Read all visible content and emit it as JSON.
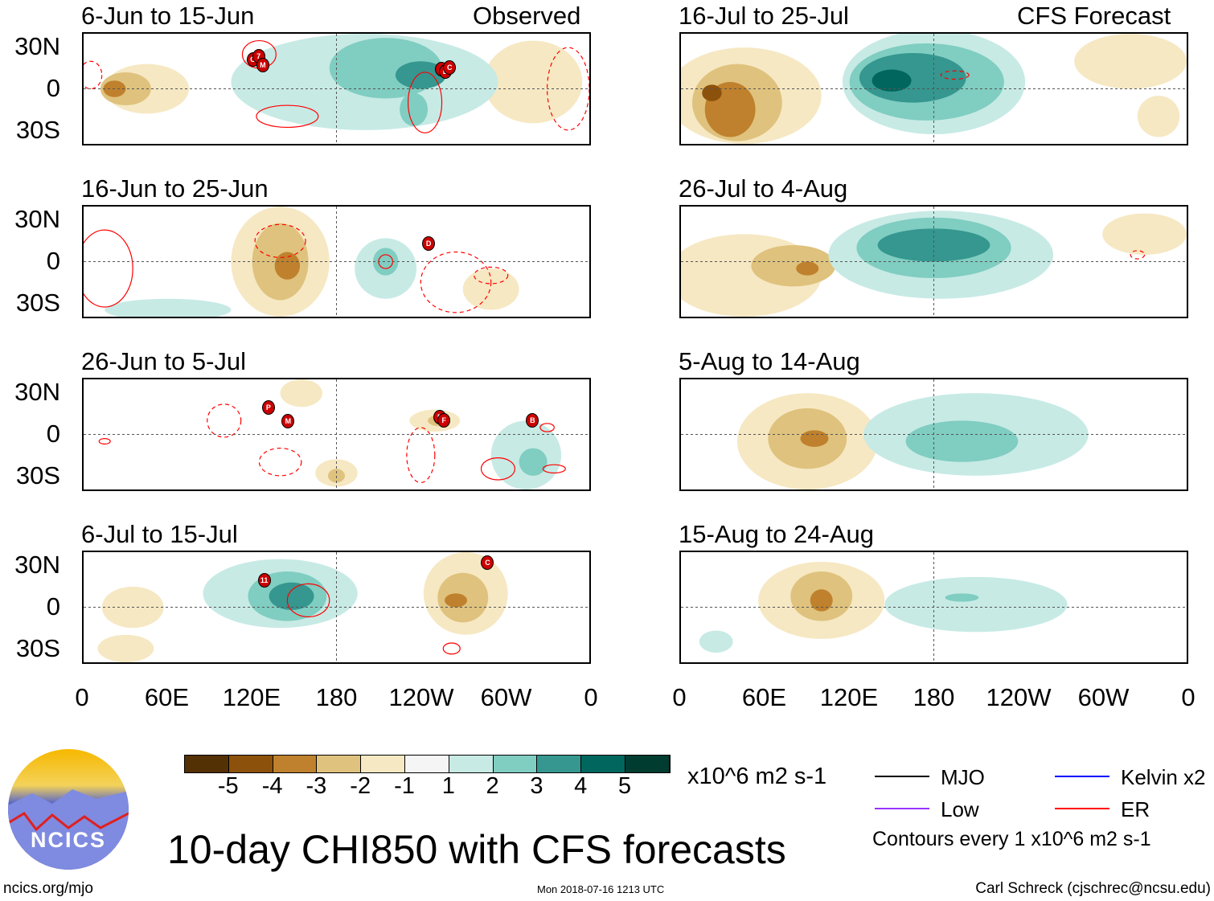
{
  "observed_label": "Observed",
  "forecast_label": "CFS Forecast",
  "panels": [
    {
      "title": "6-Jun to 15-Jun",
      "storms": [
        {
          "label": "G",
          "lon": 120,
          "lat": 22
        },
        {
          "label": "7",
          "lon": 124,
          "lat": 24
        },
        {
          "label": "M",
          "lon": 127,
          "lat": 18
        },
        {
          "label": "A",
          "lon": 254,
          "lat": 15
        },
        {
          "label": "B",
          "lon": 257,
          "lat": 13
        },
        {
          "label": "C",
          "lon": 260,
          "lat": 16
        }
      ]
    },
    {
      "title": "16-Jun to 25-Jun",
      "storms": [
        {
          "label": "D",
          "lon": 245,
          "lat": 14
        }
      ]
    },
    {
      "title": "26-Jun to 5-Jul",
      "storms": [
        {
          "label": "P",
          "lon": 131,
          "lat": 20
        },
        {
          "label": "M",
          "lon": 145,
          "lat": 10
        },
        {
          "label": "E",
          "lon": 253,
          "lat": 13
        },
        {
          "label": "F",
          "lon": 256,
          "lat": 11
        },
        {
          "label": "B",
          "lon": 319,
          "lat": 11
        }
      ]
    },
    {
      "title": "6-Jul to 15-Jul",
      "storms": [
        {
          "label": "11",
          "lon": 128,
          "lat": 20
        },
        {
          "label": "C",
          "lon": 287,
          "lat": 33
        }
      ]
    },
    {
      "title": "16-Jul to 25-Jul",
      "storms": []
    },
    {
      "title": "26-Jul to 4-Aug",
      "storms": []
    },
    {
      "title": "5-Aug to 14-Aug",
      "storms": []
    },
    {
      "title": "15-Aug to 24-Aug",
      "storms": []
    }
  ],
  "lat_labels": [
    "30N",
    "0",
    "30S"
  ],
  "lon_labels": [
    "0",
    "60E",
    "120E",
    "180",
    "120W",
    "60W",
    "0"
  ],
  "colorbar": {
    "colors": [
      "#543005",
      "#8c510a",
      "#bf812d",
      "#dfc27d",
      "#f6e8c3",
      "#f5f5f5",
      "#c7eae5",
      "#80cdc1",
      "#35978f",
      "#01665e",
      "#003c30"
    ],
    "labels": [
      "-5",
      "-4",
      "-3",
      "-2",
      "-1",
      "1",
      "2",
      "3",
      "4",
      "5"
    ],
    "units": "x10^6 m2 s-1"
  },
  "legend": {
    "items": [
      {
        "label": "MJO",
        "color": "#000000"
      },
      {
        "label": "Kelvin x2",
        "color": "#0000ff"
      },
      {
        "label": "Low",
        "color": "#9933ff"
      },
      {
        "label": "ER",
        "color": "#ff0000"
      }
    ],
    "note": "Contours every 1 x10^6 m2 s-1"
  },
  "main_title": "10-day CHI850 with CFS forecasts",
  "logo_text": "NCICS",
  "footer": {
    "url": "ncics.org/mjo",
    "timestamp": "Mon 2018-07-16 1213 UTC",
    "author": "Carl Schreck (cjschrec@ncsu.edu)"
  }
}
